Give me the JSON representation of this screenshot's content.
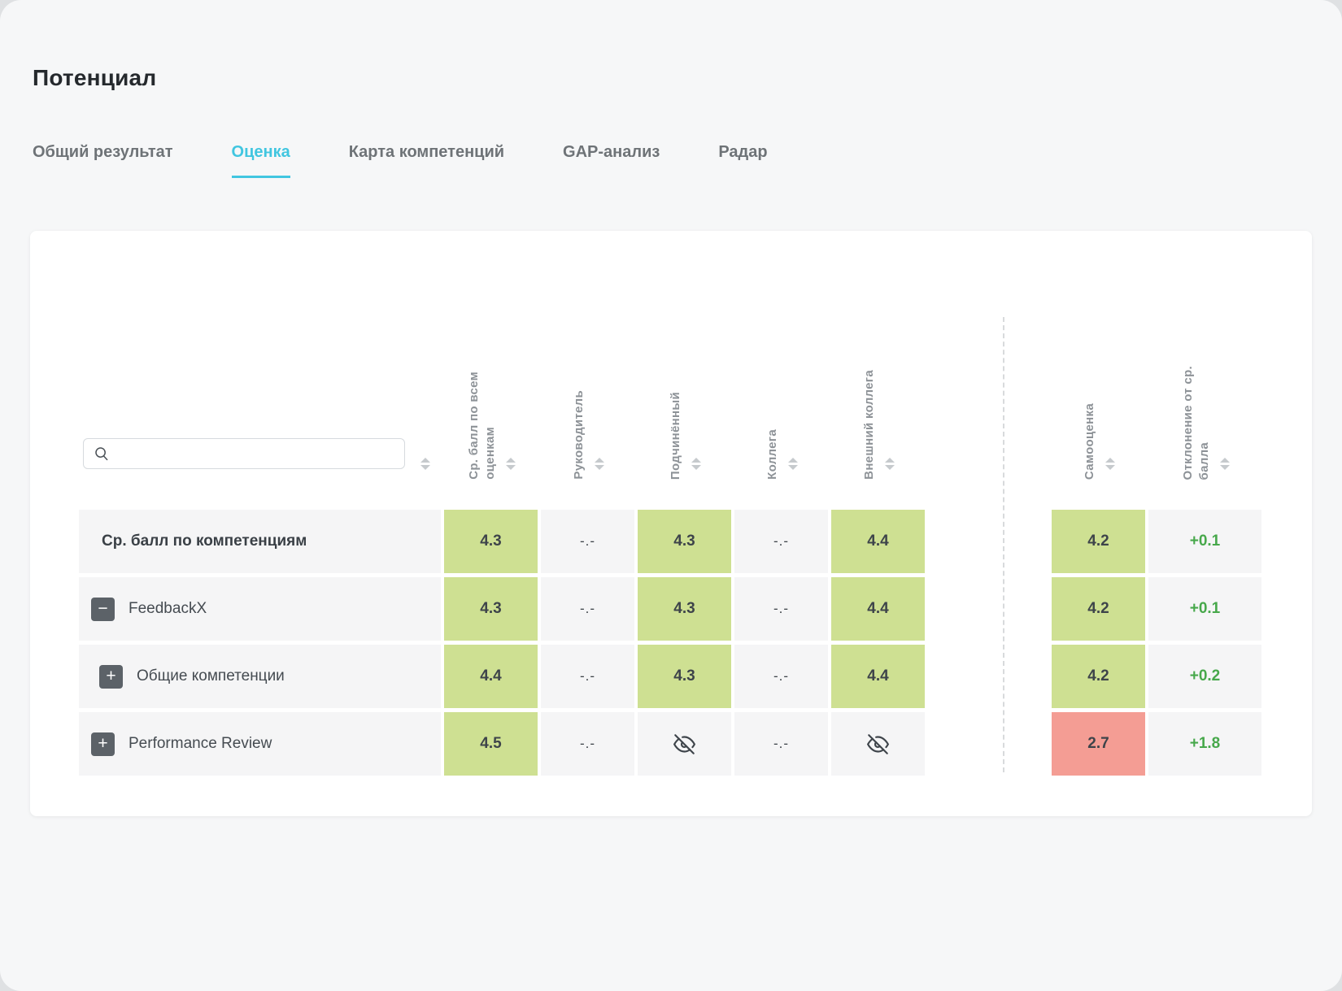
{
  "page": {
    "title": "Потенциал"
  },
  "tabs": [
    {
      "label": "Общий результат",
      "active": false
    },
    {
      "label": "Оценка",
      "active": true
    },
    {
      "label": "Карта компетенций",
      "active": false
    },
    {
      "label": "GAP-анализ",
      "active": false
    },
    {
      "label": "Радар",
      "active": false
    }
  ],
  "table": {
    "search": {
      "value": "",
      "placeholder": ""
    },
    "columns": [
      {
        "label": "Ср. балл по всем\nоценкам"
      },
      {
        "label": "Руководитель"
      },
      {
        "label": "Подчинённый"
      },
      {
        "label": "Коллега"
      },
      {
        "label": "Внешний коллега"
      },
      {
        "label": "Самооценка"
      },
      {
        "label": "Отклонение от ср.\nбалла"
      }
    ],
    "empty_value": "-.-",
    "rows": [
      {
        "label": "Ср. балл по компетенциям",
        "bold": true,
        "expander": null,
        "indent": 0,
        "scores": [
          {
            "type": "score",
            "value": "4.3"
          },
          {
            "type": "empty"
          },
          {
            "type": "score",
            "value": "4.3"
          },
          {
            "type": "empty"
          },
          {
            "type": "score",
            "value": "4.4"
          }
        ],
        "self": {
          "type": "score",
          "value": "4.2"
        },
        "deviation": "+0.1"
      },
      {
        "label": "FeedbackX",
        "bold": false,
        "expander": "collapse",
        "indent": 0,
        "scores": [
          {
            "type": "score",
            "value": "4.3"
          },
          {
            "type": "empty"
          },
          {
            "type": "score",
            "value": "4.3"
          },
          {
            "type": "empty"
          },
          {
            "type": "score",
            "value": "4.4"
          }
        ],
        "self": {
          "type": "score",
          "value": "4.2"
        },
        "deviation": "+0.1"
      },
      {
        "label": "Общие компетенции",
        "bold": false,
        "expander": "expand",
        "indent": 1,
        "scores": [
          {
            "type": "score",
            "value": "4.4"
          },
          {
            "type": "empty"
          },
          {
            "type": "score",
            "value": "4.3"
          },
          {
            "type": "empty"
          },
          {
            "type": "score",
            "value": "4.4"
          }
        ],
        "self": {
          "type": "score",
          "value": "4.2"
        },
        "deviation": "+0.2"
      },
      {
        "label": "Performance Review",
        "bold": false,
        "expander": "expand",
        "indent": 0,
        "scores": [
          {
            "type": "score",
            "value": "4.5"
          },
          {
            "type": "empty"
          },
          {
            "type": "hidden"
          },
          {
            "type": "empty"
          },
          {
            "type": "hidden"
          }
        ],
        "self": {
          "type": "score-red",
          "value": "2.7"
        },
        "deviation": "+1.8"
      }
    ]
  },
  "colors": {
    "accent": "#41c6e0",
    "score_green": "#cee092",
    "score_red": "#f49d94",
    "deviation_green": "#47a84b"
  }
}
